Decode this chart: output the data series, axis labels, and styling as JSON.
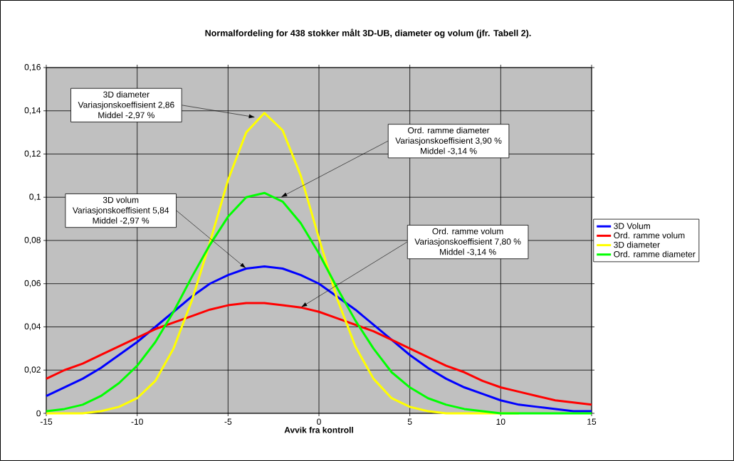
{
  "chart_data": {
    "type": "line",
    "title": "Normalfordeling for 438 stokker målt 3D-UB, diameter og volum (jfr. Tabell 2).",
    "xlabel": "Avvik fra kontroll",
    "x": [
      -15,
      -14,
      -13,
      -12,
      -11,
      -10,
      -9,
      -8,
      -7,
      -6,
      -5,
      -4,
      -3,
      -2,
      -1,
      0,
      1,
      2,
      3,
      4,
      5,
      6,
      7,
      8,
      9,
      10,
      11,
      12,
      13,
      14,
      15
    ],
    "series": [
      {
        "name": "3D Volum",
        "color": "#0000ff",
        "values": [
          0.008,
          0.012,
          0.016,
          0.021,
          0.027,
          0.033,
          0.04,
          0.047,
          0.054,
          0.06,
          0.064,
          0.067,
          0.068,
          0.067,
          0.064,
          0.06,
          0.054,
          0.048,
          0.041,
          0.034,
          0.027,
          0.021,
          0.016,
          0.012,
          0.009,
          0.006,
          0.004,
          0.003,
          0.002,
          0.001,
          0.001
        ]
      },
      {
        "name": "Ord. ramme volum",
        "color": "#ff0000",
        "values": [
          0.016,
          0.02,
          0.023,
          0.027,
          0.031,
          0.035,
          0.039,
          0.042,
          0.045,
          0.048,
          0.05,
          0.051,
          0.051,
          0.05,
          0.049,
          0.047,
          0.044,
          0.041,
          0.038,
          0.034,
          0.03,
          0.026,
          0.022,
          0.019,
          0.015,
          0.012,
          0.01,
          0.008,
          0.006,
          0.005,
          0.004
        ]
      },
      {
        "name": "3D diameter",
        "color": "#ffff00",
        "values": [
          0,
          0,
          0,
          0.001,
          0.003,
          0.007,
          0.015,
          0.03,
          0.052,
          0.079,
          0.108,
          0.13,
          0.139,
          0.131,
          0.11,
          0.081,
          0.053,
          0.031,
          0.016,
          0.007,
          0.003,
          0.001,
          0,
          0,
          0,
          0,
          0,
          null,
          null,
          null,
          null
        ]
      },
      {
        "name": "Ord. ramme diameter",
        "color": "#00ff00",
        "values": [
          0.001,
          0.002,
          0.004,
          0.008,
          0.014,
          0.022,
          0.033,
          0.047,
          0.063,
          0.078,
          0.091,
          0.1,
          0.102,
          0.098,
          0.088,
          0.074,
          0.058,
          0.043,
          0.03,
          0.019,
          0.012,
          0.007,
          0.004,
          0.002,
          0.001,
          0,
          0,
          0,
          0,
          0,
          0
        ]
      }
    ],
    "xlim": [
      -15,
      15
    ],
    "xticks": [
      -15,
      -10,
      -5,
      0,
      5,
      10,
      15
    ],
    "ylim": [
      0,
      0.16
    ],
    "yticks": [
      0,
      {
        "value": 0.02,
        "label": "0,02"
      },
      {
        "value": 0.04,
        "label": "0,04"
      },
      {
        "value": 0.06,
        "label": "0,06"
      },
      {
        "value": 0.08,
        "label": "0,08"
      },
      {
        "value": 0.1,
        "label": "0,1"
      },
      {
        "value": 0.12,
        "label": "0,12"
      },
      {
        "value": 0.14,
        "label": "0,14"
      },
      {
        "value": 0.16,
        "label": "0,16"
      }
    ],
    "grid": true,
    "legend": "right",
    "line_style": "solid",
    "annotations": [
      "3D diameter",
      {
        "text": "Variasjonskoeffisient 2,86",
        "x": -3.5,
        "y": 0.137
      },
      "Middel -2,97 %",
      "Ord. ramme diameter",
      {
        "text": "Variasjonskoeffisient 3,90 %",
        "x": -2.1,
        "y": 0.1
      },
      "Middel  -3,14 %",
      "3D volum",
      {
        "text": "Variasjonskoeffisient 5,84",
        "x": -4.0,
        "y": 0.067
      },
      "Middel -2,97 %",
      "Ord. ramme volum",
      {
        "text": "Variasjonskoeffisient 7,80 %",
        "x": -1.0,
        "y": 0.049
      },
      "Middel -3,14 %"
    ]
  }
}
